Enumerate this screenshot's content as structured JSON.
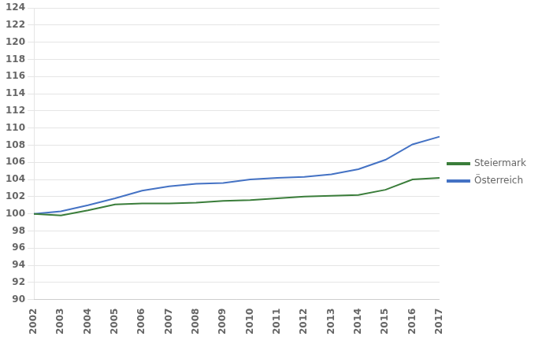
{
  "chart_data": {
    "type": "line",
    "categories": [
      "2002",
      "2003",
      "2004",
      "2005",
      "2006",
      "2007",
      "2008",
      "2009",
      "2010",
      "2011",
      "2012",
      "2013",
      "2014",
      "2015",
      "2016",
      "2017"
    ],
    "series": [
      {
        "name": "Steiermark",
        "color": "#3a7d3a",
        "values": [
          100.0,
          99.8,
          100.4,
          101.1,
          101.2,
          101.2,
          101.3,
          101.5,
          101.6,
          101.8,
          102.0,
          102.1,
          102.2,
          102.8,
          104.0,
          104.2
        ]
      },
      {
        "name": "Österreich",
        "color": "#4472c4",
        "values": [
          100.0,
          100.3,
          101.0,
          101.8,
          102.7,
          103.2,
          103.5,
          103.6,
          104.0,
          104.2,
          104.3,
          104.6,
          105.2,
          106.3,
          108.1,
          109.0
        ]
      }
    ],
    "ylim": [
      90,
      124
    ],
    "yticks": [
      90,
      92,
      94,
      96,
      98,
      100,
      102,
      104,
      106,
      108,
      110,
      112,
      114,
      116,
      118,
      120,
      122,
      124
    ],
    "grid": "y",
    "legend": "right"
  }
}
